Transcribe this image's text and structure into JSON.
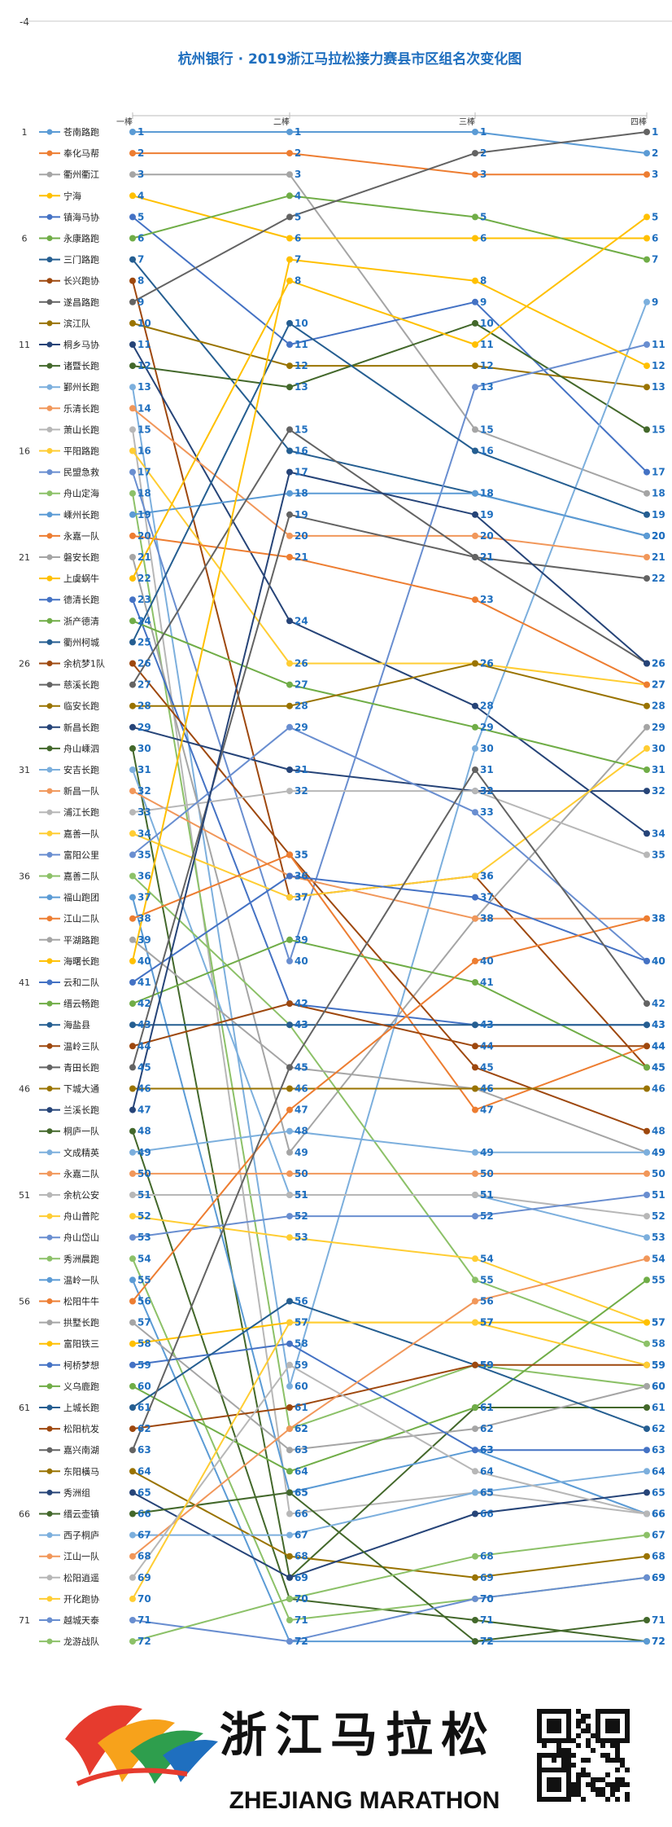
{
  "page_corner_mark": "-4",
  "chart_data": {
    "type": "line",
    "title": "杭州银行 · 2019浙江马拉松接力赛县市区组名次变化图",
    "categories": [
      "一棒",
      "二棒",
      "三棒",
      "四棒"
    ],
    "left_tick_labels": [
      "1",
      "6",
      "11",
      "16",
      "21",
      "26",
      "31",
      "36",
      "41",
      "46",
      "51",
      "56",
      "61",
      "66",
      "71"
    ],
    "ylim": [
      1,
      72
    ],
    "y_reversed": true,
    "series": [
      {
        "name": "苍南路跑",
        "values": [
          1,
          1,
          1,
          2
        ]
      },
      {
        "name": "奉化马帮",
        "values": [
          2,
          2,
          3,
          3
        ]
      },
      {
        "name": "衢州衢江",
        "values": [
          3,
          3,
          15,
          18
        ]
      },
      {
        "name": "宁海",
        "values": [
          4,
          6,
          6,
          6
        ]
      },
      {
        "name": "镇海马协",
        "values": [
          5,
          11,
          9,
          17
        ]
      },
      {
        "name": "永康路跑",
        "values": [
          6,
          4,
          5,
          7
        ]
      },
      {
        "name": "三门路跑",
        "values": [
          7,
          16,
          18,
          20
        ]
      },
      {
        "name": "长兴跑协",
        "values": [
          8,
          37,
          36,
          45
        ]
      },
      {
        "name": "遂昌路跑",
        "values": [
          9,
          5,
          2,
          1
        ]
      },
      {
        "name": "滨江队",
        "values": [
          10,
          12,
          12,
          13
        ]
      },
      {
        "name": "桐乡马协",
        "values": [
          11,
          24,
          28,
          34
        ]
      },
      {
        "name": "诸暨长跑",
        "values": [
          12,
          13,
          10,
          15
        ]
      },
      {
        "name": "鄞州长跑",
        "values": [
          13,
          60,
          30,
          9
        ]
      },
      {
        "name": "乐清长跑",
        "values": [
          14,
          20,
          20,
          21
        ]
      },
      {
        "name": "萧山长跑",
        "values": [
          15,
          66,
          65,
          66
        ]
      },
      {
        "name": "平阳路跑",
        "values": [
          16,
          26,
          26,
          27
        ]
      },
      {
        "name": "民盟急救",
        "values": [
          17,
          40,
          13,
          11
        ]
      },
      {
        "name": "舟山定海",
        "values": [
          18,
          62,
          59,
          60
        ]
      },
      {
        "name": "嵊州长跑",
        "values": [
          19,
          18,
          18,
          20
        ]
      },
      {
        "name": "永嘉一队",
        "values": [
          20,
          21,
          23,
          27
        ]
      },
      {
        "name": "磐安长跑",
        "values": [
          21,
          49,
          38,
          29
        ]
      },
      {
        "name": "上虞蜗牛",
        "values": [
          22,
          8,
          11,
          5
        ]
      },
      {
        "name": "德清长跑",
        "values": [
          23,
          42,
          43,
          43
        ]
      },
      {
        "name": "浙产德清",
        "values": [
          24,
          27,
          29,
          31
        ]
      },
      {
        "name": "衢州柯城",
        "values": [
          25,
          10,
          16,
          19
        ]
      },
      {
        "name": "余杭梦1队",
        "values": [
          26,
          35,
          45,
          48
        ]
      },
      {
        "name": "慈溪长跑",
        "values": [
          27,
          15,
          21,
          26
        ]
      },
      {
        "name": "临安长跑",
        "values": [
          28,
          28,
          26,
          28
        ]
      },
      {
        "name": "新昌长跑",
        "values": [
          29,
          31,
          32,
          32
        ]
      },
      {
        "name": "舟山嵊泗",
        "values": [
          30,
          69,
          61,
          61
        ]
      },
      {
        "name": "安吉长跑",
        "values": [
          31,
          51,
          51,
          53
        ]
      },
      {
        "name": "新昌一队",
        "values": [
          32,
          36,
          38,
          38
        ]
      },
      {
        "name": "浦江长跑",
        "values": [
          33,
          32,
          32,
          35
        ]
      },
      {
        "name": "嘉善一队",
        "values": [
          34,
          37,
          36,
          30
        ]
      },
      {
        "name": "富阳公里",
        "values": [
          35,
          29,
          33,
          40
        ]
      },
      {
        "name": "嘉善二队",
        "values": [
          36,
          43,
          55,
          58
        ]
      },
      {
        "name": "福山跑团",
        "values": [
          37,
          65,
          63,
          66
        ]
      },
      {
        "name": "江山二队",
        "values": [
          38,
          35,
          47,
          44
        ]
      },
      {
        "name": "平湖路跑",
        "values": [
          39,
          45,
          46,
          49
        ]
      },
      {
        "name": "海曙长跑",
        "values": [
          40,
          7,
          8,
          12
        ]
      },
      {
        "name": "云和二队",
        "values": [
          41,
          36,
          37,
          40
        ]
      },
      {
        "name": "缙云畅跑",
        "values": [
          42,
          39,
          41,
          45
        ]
      },
      {
        "name": "海盐县",
        "values": [
          43,
          43,
          43,
          43
        ]
      },
      {
        "name": "温岭三队",
        "values": [
          44,
          42,
          44,
          44
        ]
      },
      {
        "name": "青田长跑",
        "values": [
          45,
          19,
          21,
          22
        ]
      },
      {
        "name": "下城大通",
        "values": [
          46,
          46,
          46,
          46
        ]
      },
      {
        "name": "兰溪长跑",
        "values": [
          47,
          17,
          19,
          26
        ]
      },
      {
        "name": "桐庐一队",
        "values": [
          48,
          70,
          71,
          72
        ]
      },
      {
        "name": "文成精英",
        "values": [
          49,
          48,
          49,
          49
        ]
      },
      {
        "name": "永嘉二队",
        "values": [
          50,
          50,
          50,
          50
        ]
      },
      {
        "name": "余杭公安",
        "values": [
          51,
          51,
          51,
          52
        ]
      },
      {
        "name": "舟山普陀",
        "values": [
          52,
          53,
          54,
          57
        ]
      },
      {
        "name": "舟山岱山",
        "values": [
          53,
          52,
          52,
          51
        ]
      },
      {
        "name": "秀洲晨跑",
        "values": [
          54,
          71,
          70,
          69
        ]
      },
      {
        "name": "温岭一队",
        "values": [
          55,
          72,
          72,
          72
        ]
      },
      {
        "name": "松阳牛牛",
        "values": [
          56,
          47,
          40,
          38
        ]
      },
      {
        "name": "拱墅长跑",
        "values": [
          57,
          63,
          62,
          60
        ]
      },
      {
        "name": "富阳铁三",
        "values": [
          58,
          57,
          57,
          57
        ]
      },
      {
        "name": "柯桥梦想",
        "values": [
          59,
          58,
          63,
          63
        ]
      },
      {
        "name": "义乌鹿跑",
        "values": [
          60,
          64,
          61,
          55
        ]
      },
      {
        "name": "上城长跑",
        "values": [
          61,
          56,
          59,
          62
        ]
      },
      {
        "name": "松阳杭发",
        "values": [
          62,
          61,
          59,
          59
        ]
      },
      {
        "name": "嘉兴南湖",
        "values": [
          63,
          45,
          31,
          42
        ]
      },
      {
        "name": "东阳橫马",
        "values": [
          64,
          68,
          69,
          68
        ]
      },
      {
        "name": "秀洲组",
        "values": [
          65,
          69,
          66,
          65
        ]
      },
      {
        "name": "缙云壶镇",
        "values": [
          66,
          65,
          72,
          71
        ]
      },
      {
        "name": "西子桐庐",
        "values": [
          67,
          67,
          65,
          64
        ]
      },
      {
        "name": "江山一队",
        "values": [
          68,
          62,
          56,
          54
        ]
      },
      {
        "name": "松阳逍遥",
        "values": [
          69,
          59,
          64,
          66
        ]
      },
      {
        "name": "开化跑协",
        "values": [
          70,
          57,
          57,
          59
        ]
      },
      {
        "name": "越城天泰",
        "values": [
          71,
          72,
          70,
          69
        ]
      },
      {
        "name": "龙游战队",
        "values": [
          72,
          70,
          68,
          67
        ]
      }
    ],
    "grid": false,
    "legend_position": "left"
  },
  "footer": {
    "brand_cn": "浙江马拉松",
    "brand_en": "ZHEJIANG MARATHON"
  }
}
